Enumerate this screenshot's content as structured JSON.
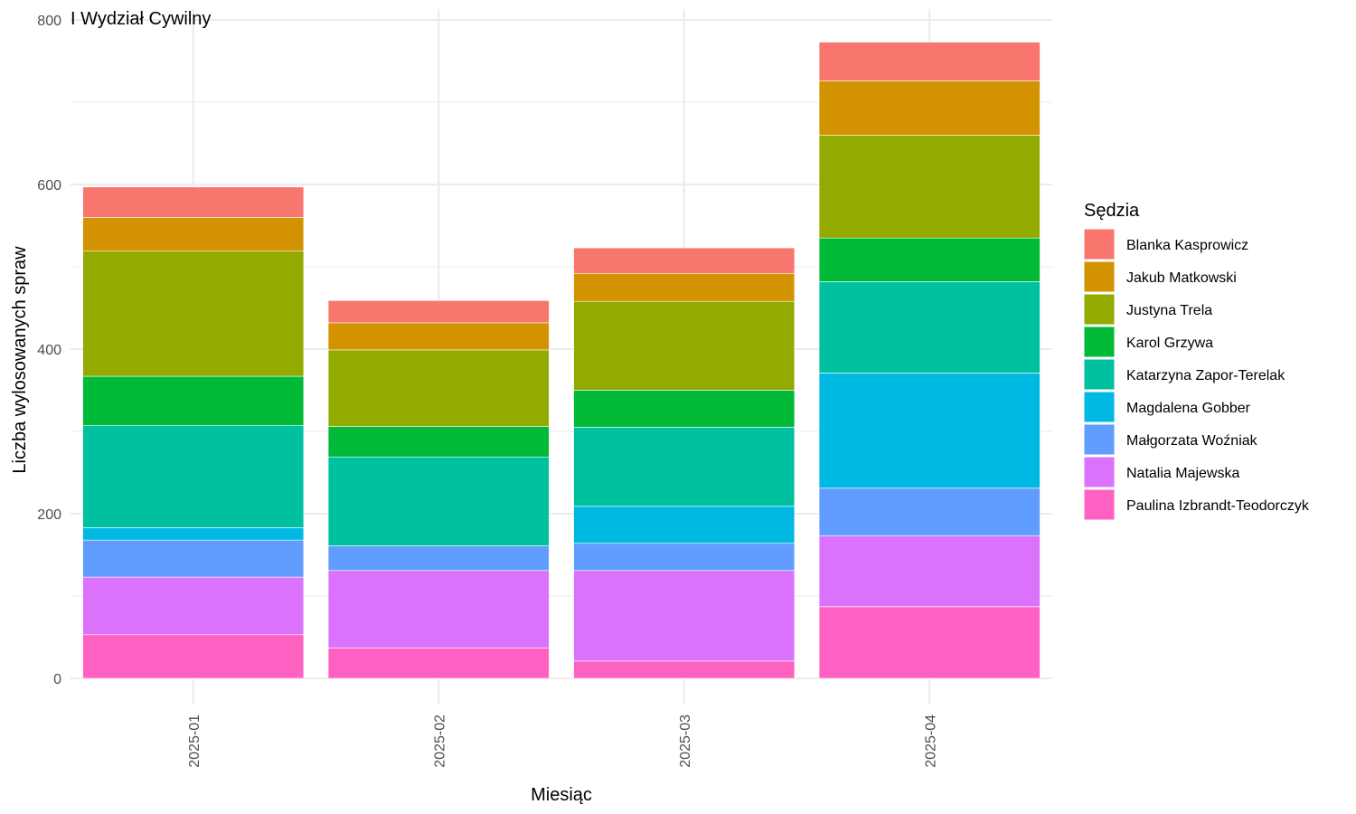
{
  "chart_data": {
    "type": "bar",
    "stacked": true,
    "title": "I Wydział Cywilny",
    "xlabel": "Miesiąc",
    "ylabel": "Liczba wylosowanych spraw",
    "ylim": [
      0,
      800
    ],
    "yticks": [
      "0",
      "200",
      "400",
      "600",
      "800"
    ],
    "grid": true,
    "legend_title": "Sędzia",
    "legend_position": "right",
    "categories": [
      "2025-01",
      "2025-02",
      "2025-03",
      "2025-04"
    ],
    "series": [
      {
        "name": "Blanka Kasprowicz",
        "color": "#F8766D",
        "values": [
          37,
          27,
          31,
          47
        ]
      },
      {
        "name": "Jakub Matkowski",
        "color": "#D39200",
        "values": [
          41,
          33,
          34,
          66
        ]
      },
      {
        "name": "Justyna Trela",
        "color": "#93AA00",
        "values": [
          152,
          93,
          108,
          125
        ]
      },
      {
        "name": "Karol Grzywa",
        "color": "#00BA38",
        "values": [
          60,
          37,
          45,
          53
        ]
      },
      {
        "name": "Katarzyna Zapor-Terelak",
        "color": "#00C19F",
        "values": [
          124,
          108,
          96,
          111
        ]
      },
      {
        "name": "Magdalena Gobber",
        "color": "#00B9E3",
        "values": [
          15,
          0,
          45,
          140
        ]
      },
      {
        "name": "Małgorzata Woźniak",
        "color": "#619CFF",
        "values": [
          45,
          30,
          33,
          58
        ]
      },
      {
        "name": "Natalia Majewska",
        "color": "#DB72FB",
        "values": [
          70,
          94,
          110,
          86
        ]
      },
      {
        "name": "Paulina Izbrandt-Teodorczyk",
        "color": "#FF61C3",
        "values": [
          53,
          37,
          21,
          87
        ]
      }
    ]
  }
}
